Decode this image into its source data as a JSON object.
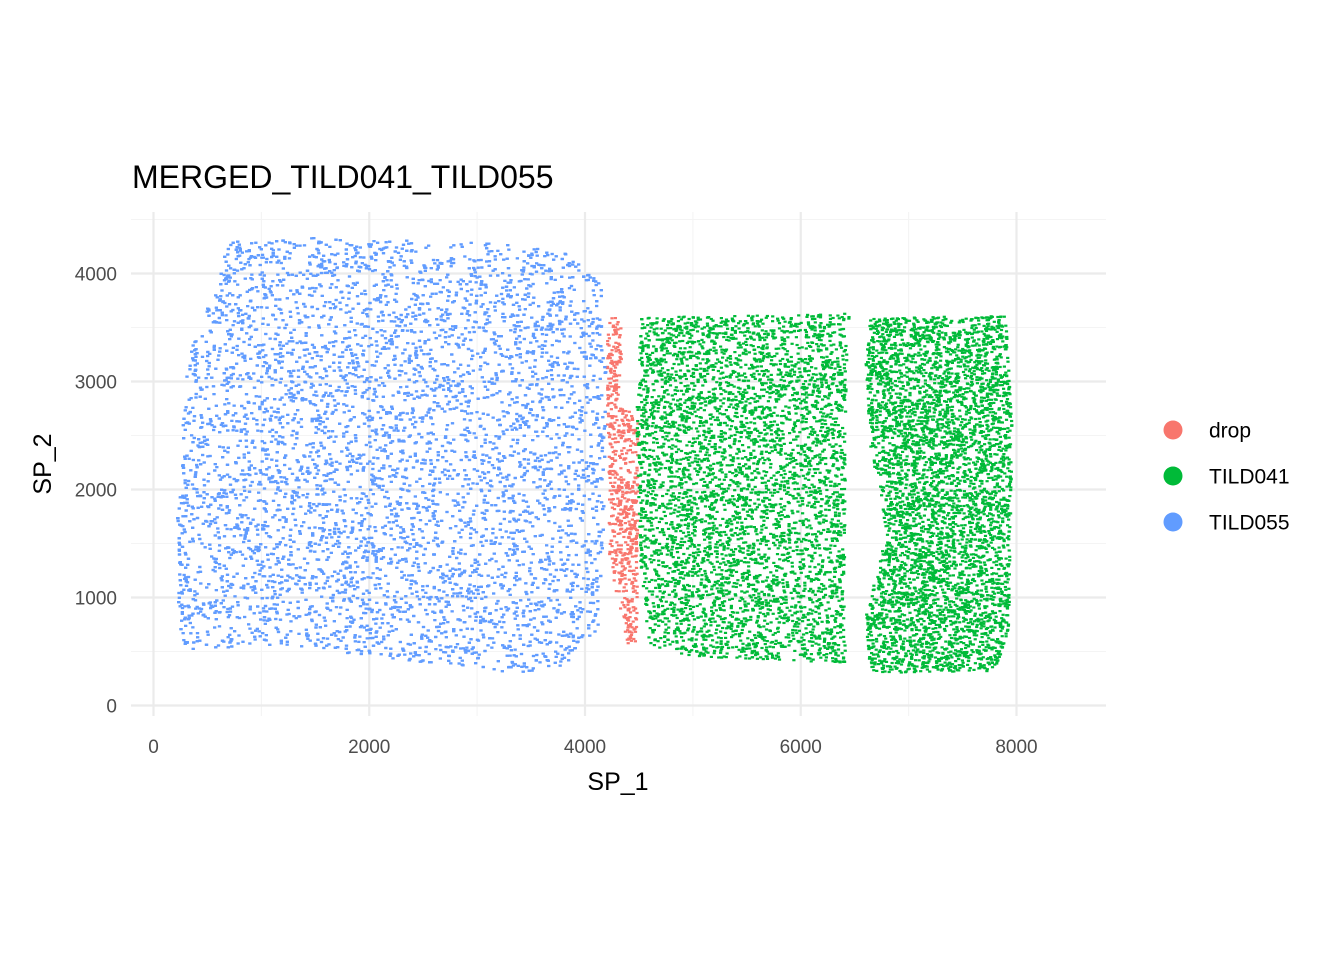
{
  "chart_data": {
    "type": "scatter",
    "title": "MERGED_TILD041_TILD055",
    "xlabel": "SP_1",
    "ylabel": "SP_2",
    "xlim": [
      -200,
      8800
    ],
    "ylim": [
      -80,
      4500
    ],
    "x_ticks": [
      0,
      2000,
      4000,
      6000,
      8000
    ],
    "x_tick_labels": [
      "0",
      "2000",
      "4000",
      "6000",
      "8000"
    ],
    "y_ticks": [
      0,
      1000,
      2000,
      3000,
      4000
    ],
    "y_tick_labels": [
      "0",
      "1000",
      "2000",
      "3000",
      "4000"
    ],
    "grid": true,
    "legend_position": "right",
    "series": [
      {
        "name": "drop",
        "color": "#F8766D",
        "region_polygon": [
          [
            4230,
            3600
          ],
          [
            4330,
            3580
          ],
          [
            4350,
            3200
          ],
          [
            4310,
            2800
          ],
          [
            4500,
            2650
          ],
          [
            4480,
            600
          ],
          [
            4400,
            560
          ],
          [
            4230,
            1300
          ],
          [
            4210,
            2400
          ],
          [
            4200,
            3400
          ]
        ],
        "approx_points": 600
      },
      {
        "name": "TILD041",
        "color": "#00BA38",
        "region_polygon": [
          [
            4520,
            3600
          ],
          [
            6450,
            3630
          ],
          [
            6420,
            2900
          ],
          [
            6400,
            700
          ],
          [
            6430,
            390
          ],
          [
            4950,
            450
          ],
          [
            4600,
            560
          ],
          [
            4520,
            1200
          ],
          [
            4480,
            2600
          ],
          [
            4500,
            3300
          ]
        ],
        "region_polygon_2": [
          [
            6650,
            3580
          ],
          [
            7700,
            3620
          ],
          [
            7900,
            3600
          ],
          [
            7960,
            2600
          ],
          [
            7930,
            700
          ],
          [
            7800,
            320
          ],
          [
            6650,
            300
          ],
          [
            6600,
            800
          ],
          [
            6800,
            1600
          ],
          [
            6650,
            2400
          ],
          [
            6600,
            3200
          ]
        ],
        "approx_points": 9000
      },
      {
        "name": "TILD055",
        "color": "#619CFF",
        "region_polygon": [
          [
            700,
            4320
          ],
          [
            1600,
            4330
          ],
          [
            2500,
            4300
          ],
          [
            3500,
            4270
          ],
          [
            3900,
            4160
          ],
          [
            4150,
            3900
          ],
          [
            4200,
            3000
          ],
          [
            4170,
            1600
          ],
          [
            4120,
            700
          ],
          [
            3800,
            340
          ],
          [
            3300,
            300
          ],
          [
            1200,
            560
          ],
          [
            300,
            500
          ],
          [
            200,
            900
          ],
          [
            220,
            1700
          ],
          [
            310,
            3200
          ],
          [
            580,
            3900
          ]
        ],
        "approx_points": 11000
      }
    ]
  }
}
